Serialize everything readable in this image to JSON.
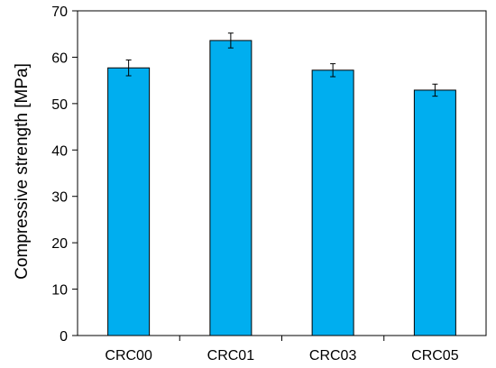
{
  "chart_data": {
    "type": "bar",
    "title": "",
    "xlabel": "",
    "ylabel": "Compressive strength [MPa]",
    "categories": [
      "CRC00",
      "CRC01",
      "CRC03",
      "CRC05"
    ],
    "values": [
      57.7,
      63.6,
      57.2,
      52.9
    ],
    "errors": [
      1.7,
      1.6,
      1.4,
      1.3
    ],
    "ylim": [
      0,
      70
    ],
    "yticks": [
      0,
      10,
      20,
      30,
      40,
      50,
      60,
      70
    ],
    "grid": false,
    "legend": "none",
    "bar_color": "#00AEEF",
    "bar_edge_color": "#000000"
  }
}
